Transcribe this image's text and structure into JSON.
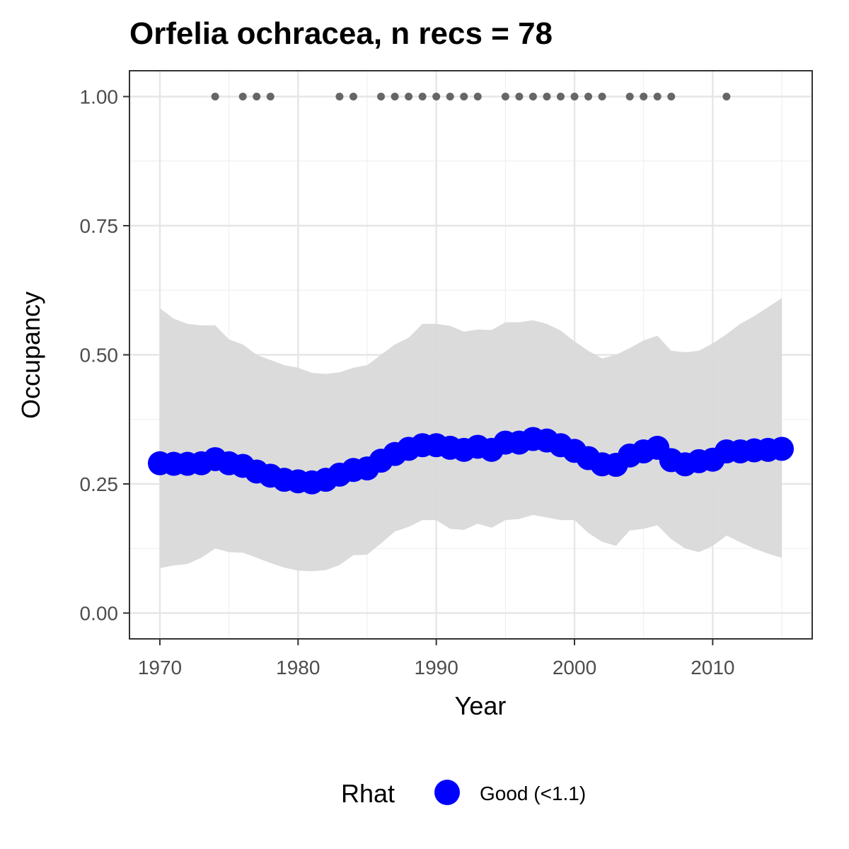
{
  "chart_data": {
    "type": "line",
    "title": "Orfelia ochracea, n recs = 78",
    "xlabel": "Year",
    "ylabel": "Occupancy",
    "xlim": [
      1967.8,
      2017.2
    ],
    "ylim": [
      -0.05,
      1.05
    ],
    "x_ticks": [
      1970,
      1980,
      1990,
      2000,
      2010
    ],
    "x_tick_labels": [
      "1970",
      "1980",
      "1990",
      "2000",
      "2010"
    ],
    "y_ticks": [
      0,
      0.25,
      0.5,
      0.75,
      1.0
    ],
    "y_tick_labels": [
      "0.00",
      "0.25",
      "0.50",
      "0.75",
      "1.00"
    ],
    "grid": true,
    "legend": {
      "title": "Rhat",
      "position": "bottom",
      "entries": [
        {
          "label": "Good (<1.1)",
          "color": "#0000ff"
        }
      ]
    },
    "series": [
      {
        "name": "Good (<1.1)",
        "color": "#0000ff",
        "x": [
          1970,
          1971,
          1972,
          1973,
          1974,
          1975,
          1976,
          1977,
          1978,
          1979,
          1980,
          1981,
          1982,
          1983,
          1984,
          1985,
          1986,
          1987,
          1988,
          1989,
          1990,
          1991,
          1992,
          1993,
          1994,
          1995,
          1996,
          1997,
          1998,
          1999,
          2000,
          2001,
          2002,
          2003,
          2004,
          2005,
          2006,
          2007,
          2008,
          2009,
          2010,
          2011,
          2012,
          2013,
          2014,
          2015
        ],
        "values": [
          0.29,
          0.289,
          0.289,
          0.29,
          0.298,
          0.29,
          0.285,
          0.274,
          0.266,
          0.258,
          0.255,
          0.253,
          0.258,
          0.268,
          0.277,
          0.28,
          0.295,
          0.308,
          0.318,
          0.325,
          0.325,
          0.32,
          0.316,
          0.322,
          0.316,
          0.33,
          0.33,
          0.337,
          0.334,
          0.325,
          0.314,
          0.3,
          0.288,
          0.287,
          0.305,
          0.313,
          0.32,
          0.296,
          0.288,
          0.294,
          0.297,
          0.313,
          0.313,
          0.315,
          0.316,
          0.318
        ]
      }
    ],
    "ci_band": {
      "color": "#d9d9d9",
      "x": [
        1970,
        1971,
        1972,
        1973,
        1974,
        1975,
        1976,
        1977,
        1978,
        1979,
        1980,
        1981,
        1982,
        1983,
        1984,
        1985,
        1986,
        1987,
        1988,
        1989,
        1990,
        1991,
        1992,
        1993,
        1994,
        1995,
        1996,
        1997,
        1998,
        1999,
        2000,
        2001,
        2002,
        2003,
        2004,
        2005,
        2006,
        2007,
        2008,
        2009,
        2010,
        2011,
        2012,
        2013,
        2014,
        2015
      ],
      "upper": [
        0.59,
        0.57,
        0.56,
        0.557,
        0.557,
        0.53,
        0.52,
        0.5,
        0.49,
        0.48,
        0.475,
        0.465,
        0.463,
        0.466,
        0.475,
        0.48,
        0.5,
        0.52,
        0.533,
        0.56,
        0.56,
        0.556,
        0.545,
        0.549,
        0.548,
        0.563,
        0.563,
        0.567,
        0.56,
        0.547,
        0.526,
        0.508,
        0.493,
        0.5,
        0.513,
        0.528,
        0.537,
        0.508,
        0.505,
        0.508,
        0.522,
        0.54,
        0.56,
        0.575,
        0.592,
        0.61
      ],
      "lower": [
        0.087,
        0.092,
        0.095,
        0.107,
        0.125,
        0.118,
        0.117,
        0.107,
        0.097,
        0.088,
        0.082,
        0.081,
        0.083,
        0.093,
        0.112,
        0.113,
        0.135,
        0.158,
        0.167,
        0.18,
        0.18,
        0.163,
        0.161,
        0.173,
        0.165,
        0.18,
        0.182,
        0.19,
        0.185,
        0.18,
        0.18,
        0.155,
        0.138,
        0.13,
        0.16,
        0.163,
        0.17,
        0.143,
        0.125,
        0.118,
        0.13,
        0.15,
        0.137,
        0.125,
        0.115,
        0.107
      ]
    },
    "records": {
      "color": "#666666",
      "y": 1.0,
      "x": [
        1974,
        1976,
        1977,
        1978,
        1983,
        1984,
        1986,
        1987,
        1988,
        1989,
        1990,
        1991,
        1992,
        1993,
        1995,
        1996,
        1997,
        1998,
        1999,
        2000,
        2001,
        2002,
        2004,
        2005,
        2006,
        2007,
        2011
      ]
    }
  }
}
